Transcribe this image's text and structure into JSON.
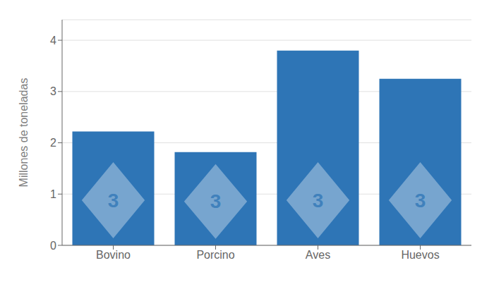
{
  "chart_data": {
    "type": "bar",
    "categories": [
      "Bovino",
      "Porcino",
      "Aves",
      "Huevos"
    ],
    "values": [
      2.22,
      1.82,
      3.8,
      3.25
    ],
    "color": "#2E75B6",
    "ylabel": "Millones de toneladas",
    "ylim": [
      0,
      4.4
    ],
    "yticks": [
      0,
      1,
      2,
      3,
      4
    ],
    "grid": true,
    "annotation": "3"
  }
}
